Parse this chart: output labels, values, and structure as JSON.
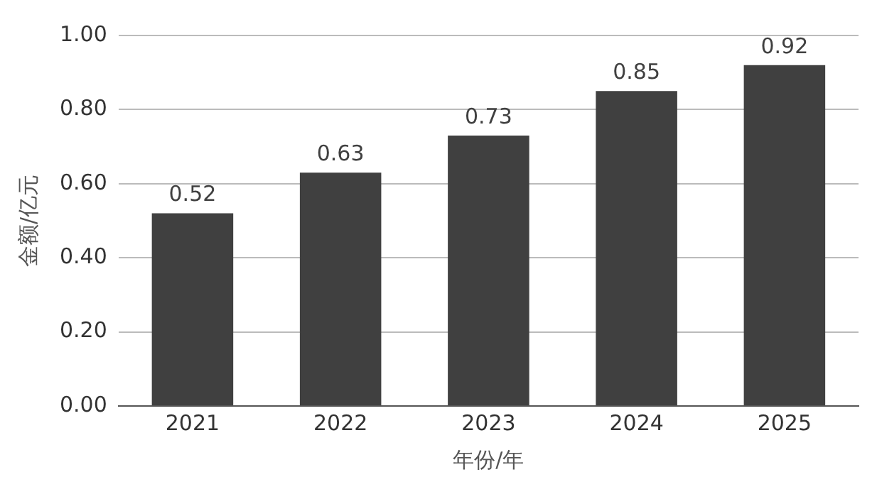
{
  "chart_data": {
    "type": "bar",
    "xlabel": "年份/年",
    "ylabel": "金额/亿元",
    "categories": [
      "2021",
      "2022",
      "2023",
      "2024",
      "2025"
    ],
    "values": [
      0.52,
      0.63,
      0.73,
      0.85,
      0.92
    ],
    "color": "#404040",
    "ylim": [
      0,
      1
    ],
    "yticks": [
      {
        "value": 0,
        "label": "0.00"
      },
      {
        "value": 0.2,
        "label": "0.20"
      },
      {
        "value": 0.4,
        "label": "0.40"
      },
      {
        "value": 0.6,
        "label": "0.60"
      },
      {
        "value": 0.8,
        "label": "0.80"
      },
      {
        "value": 1,
        "label": "1.00"
      }
    ],
    "grid": "y",
    "data_labels": true,
    "legend": false
  }
}
